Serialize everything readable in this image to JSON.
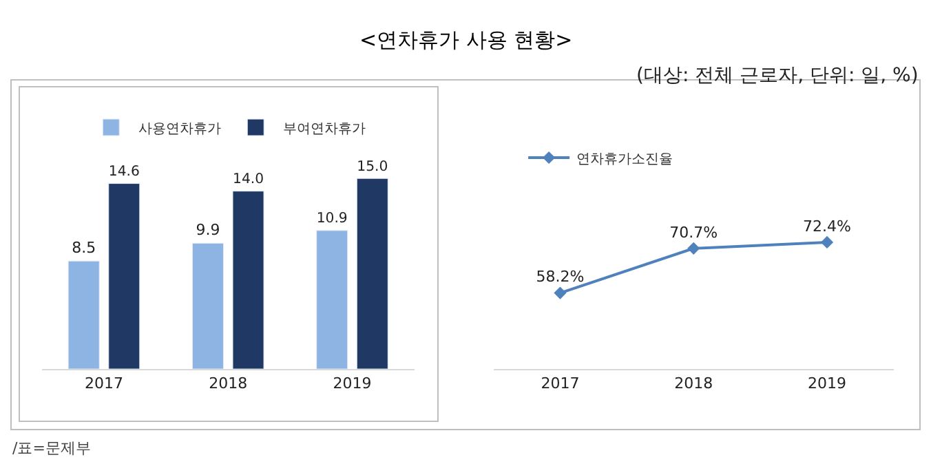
{
  "chart_data": [
    {
      "type": "bar",
      "title": "<연차휴가 사용 현황>",
      "categories": [
        "2017",
        "2018",
        "2019"
      ],
      "series": [
        {
          "name": "사용연차휴가",
          "color": "#8eb4e3",
          "values": [
            8.5,
            9.9,
            10.9
          ],
          "value_labels": [
            "8.5",
            "9.9",
            "10.9"
          ]
        },
        {
          "name": "부여연차휴가",
          "color": "#1f3864",
          "values": [
            14.6,
            14.0,
            15.0
          ],
          "value_labels": [
            "14.6",
            "14.0",
            "15.0"
          ]
        }
      ],
      "legend": "top",
      "annotations": [
        "/표=문제부"
      ]
    },
    {
      "type": "line",
      "subtitle": "(대상: 전체 근로자, 단위: 일, %)",
      "categories": [
        "2017",
        "2018",
        "2019"
      ],
      "series": [
        {
          "name": "연차휴가소진율",
          "color": "#4f81bd",
          "values": [
            58.2,
            70.7,
            72.4
          ],
          "value_labels": [
            "58.2%",
            "70.7%",
            "72.4%"
          ]
        }
      ],
      "marker": "diamond",
      "line_style": "solid",
      "legend": "top left"
    }
  ]
}
